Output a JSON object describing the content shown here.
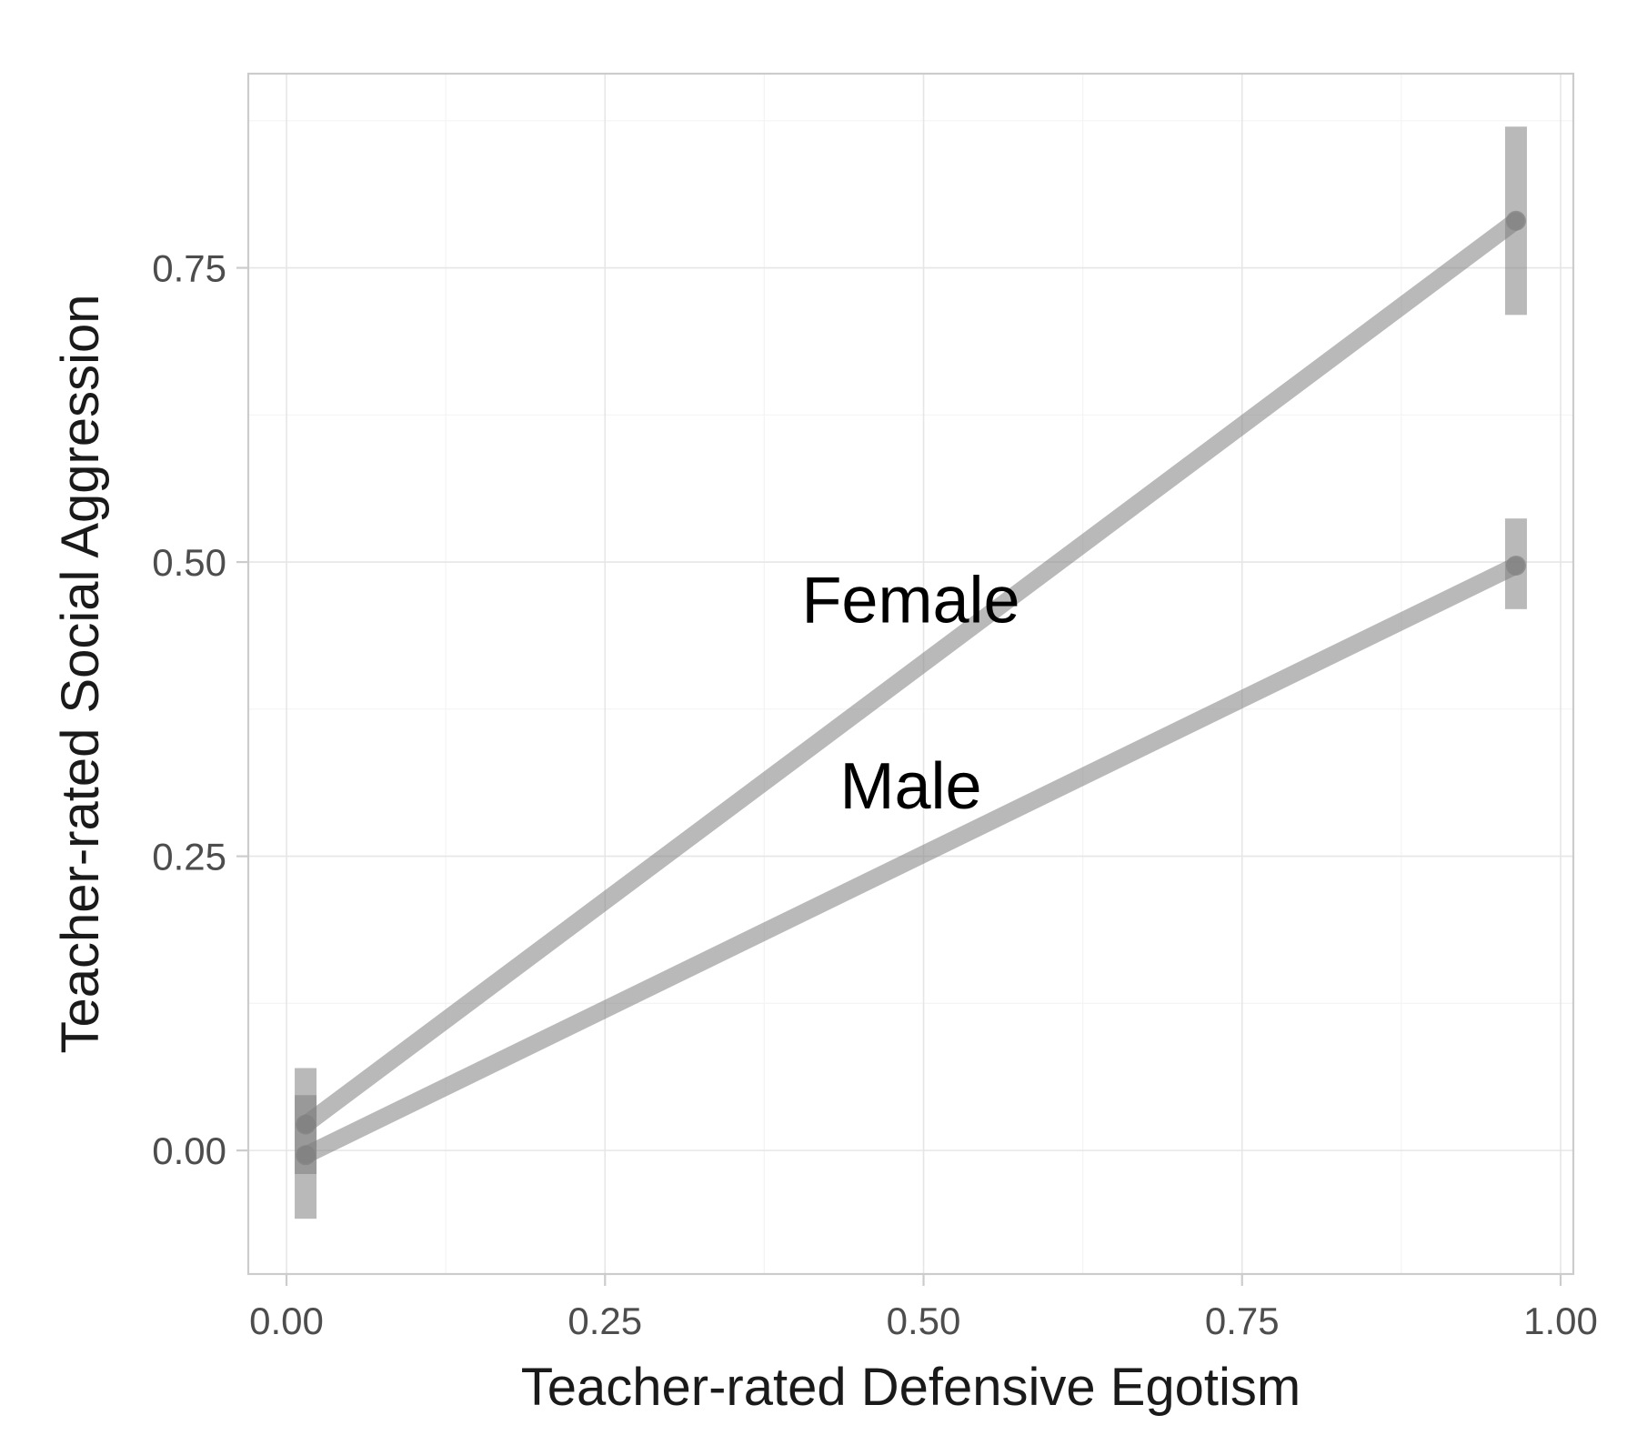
{
  "chart_data": {
    "type": "line",
    "title": "",
    "xlabel": "Teacher-rated Defensive Egotism",
    "ylabel": "Teacher-rated Social Aggression",
    "xlim": [
      -0.03,
      1.01
    ],
    "ylim": [
      -0.105,
      0.915
    ],
    "x_ticks": [
      0.0,
      0.25,
      0.5,
      0.75,
      1.0
    ],
    "x_tick_labels": [
      "0.00",
      "0.25",
      "0.50",
      "0.75",
      "1.00"
    ],
    "y_ticks": [
      0.0,
      0.25,
      0.5,
      0.75
    ],
    "y_tick_labels": [
      "0.00",
      "0.25",
      "0.50",
      "0.75"
    ],
    "grid": true,
    "legend": "none",
    "series": [
      {
        "name": "Female",
        "color": "#808080",
        "x": [
          0.015,
          0.965
        ],
        "y": [
          0.022,
          0.79
        ],
        "error_low": [
          -0.02,
          0.71
        ],
        "error_high": [
          0.07,
          0.87
        ]
      },
      {
        "name": "Male",
        "color": "#808080",
        "x": [
          0.015,
          0.965
        ],
        "y": [
          -0.004,
          0.497
        ],
        "error_low": [
          -0.058,
          0.46
        ],
        "error_high": [
          0.047,
          0.537
        ]
      }
    ],
    "annotations": [
      {
        "text": "Female",
        "x": 0.49,
        "y": 0.468
      },
      {
        "text": "Male",
        "x": 0.49,
        "y": 0.31
      }
    ]
  }
}
